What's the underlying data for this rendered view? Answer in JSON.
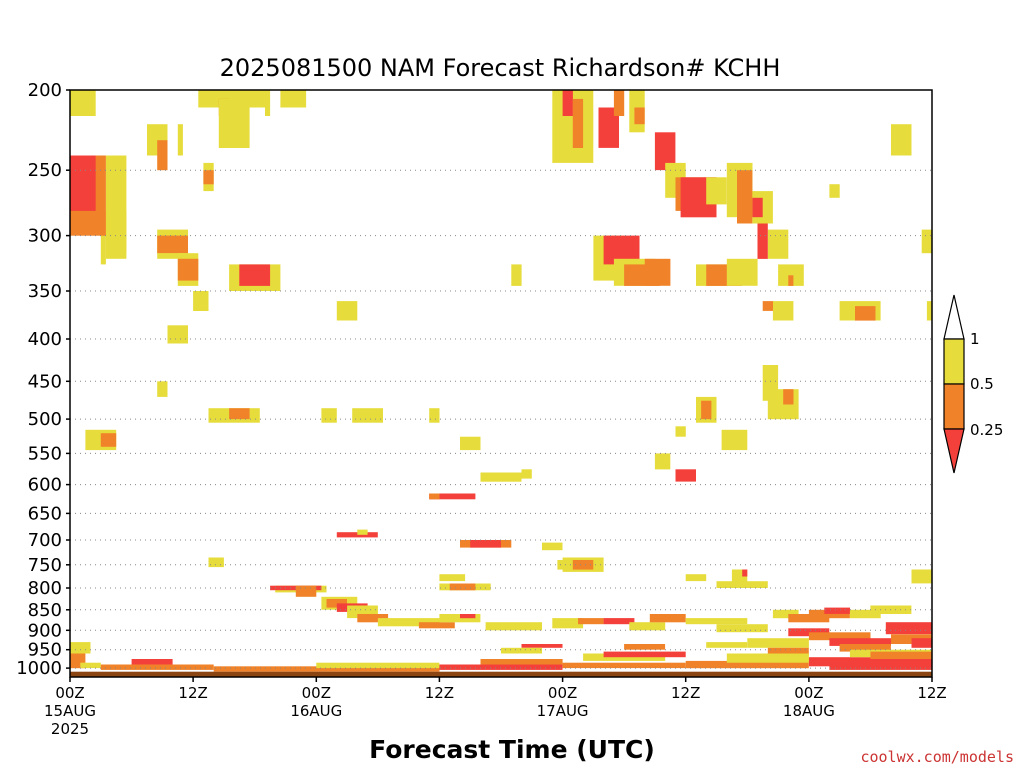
{
  "chart_data": {
    "type": "heatmap",
    "title": "2025081500 NAM Forecast Richardson# KCHH",
    "xlabel": "Forecast Time (UTC)",
    "credit": "coolwx.com/models",
    "y_scale": "log-pressure",
    "y_ticks": [
      200,
      250,
      300,
      350,
      400,
      450,
      500,
      550,
      600,
      650,
      700,
      750,
      800,
      850,
      900,
      950,
      1000
    ],
    "y_range": [
      1025,
      200
    ],
    "x_range_hours": [
      0,
      84
    ],
    "x_ticks": [
      {
        "hours": 0,
        "lines": [
          "00Z",
          "15AUG",
          "2025"
        ]
      },
      {
        "hours": 12,
        "lines": [
          "12Z"
        ]
      },
      {
        "hours": 24,
        "lines": [
          "00Z",
          "16AUG"
        ]
      },
      {
        "hours": 36,
        "lines": [
          "12Z"
        ]
      },
      {
        "hours": 48,
        "lines": [
          "00Z",
          "17AUG"
        ]
      },
      {
        "hours": 60,
        "lines": [
          "12Z"
        ]
      },
      {
        "hours": 72,
        "lines": [
          "00Z",
          "18AUG"
        ]
      },
      {
        "hours": 84,
        "lines": [
          "12Z"
        ]
      }
    ],
    "grid": "dotted horizontal at pressure ticks",
    "legend": {
      "placement": "right",
      "bins": [
        {
          "label": "1",
          "range": [
            1,
            null
          ],
          "color": "#ffffff"
        },
        {
          "label": "0.5",
          "range": [
            0.5,
            1
          ],
          "color": "#e6dd3c"
        },
        {
          "label": "0.25",
          "range": [
            0.25,
            0.5
          ],
          "color": "#f0832a"
        },
        {
          "label": "",
          "range": [
            null,
            0.25
          ],
          "color": "#f4403a"
        }
      ]
    },
    "colors": {
      "y": "#e6dd3c",
      "o": "#f0832a",
      "r": "#f4403a",
      "ground": "#8b4513"
    },
    "cells_note": "each cell: [hour_start, hour_end, p_top_hPa, p_bottom_hPa, bin]",
    "cells": [
      [
        0,
        2.5,
        200,
        215,
        "y"
      ],
      [
        3,
        3.5,
        280,
        325,
        "y"
      ],
      [
        3.5,
        5.5,
        240,
        320,
        "y"
      ],
      [
        0,
        3.5,
        240,
        300,
        "o"
      ],
      [
        0,
        2.5,
        240,
        280,
        "r"
      ],
      [
        0,
        1,
        240,
        260,
        "r"
      ],
      [
        4,
        5.5,
        280,
        315,
        "y"
      ],
      [
        7.5,
        9.5,
        220,
        240,
        "y"
      ],
      [
        8.5,
        9.5,
        230,
        250,
        "o"
      ],
      [
        10.5,
        11,
        220,
        240,
        "y"
      ],
      [
        8.5,
        11.5,
        295,
        320,
        "y"
      ],
      [
        8.5,
        11.5,
        300,
        315,
        "o"
      ],
      [
        10.5,
        12.5,
        315,
        345,
        "y"
      ],
      [
        10.5,
        12.5,
        320,
        340,
        "o"
      ],
      [
        12,
        13.5,
        350,
        370,
        "y"
      ],
      [
        13,
        14,
        245,
        265,
        "y"
      ],
      [
        13,
        14,
        250,
        260,
        "o"
      ],
      [
        12.5,
        19.5,
        200,
        210,
        "y"
      ],
      [
        14.5,
        15.5,
        205,
        215,
        "o"
      ],
      [
        14.5,
        17.5,
        205,
        235,
        "y"
      ],
      [
        19,
        19.5,
        210,
        215,
        "y"
      ],
      [
        20.5,
        23,
        200,
        210,
        "y"
      ],
      [
        15.5,
        20.5,
        325,
        350,
        "y"
      ],
      [
        16.5,
        19.5,
        325,
        345,
        "r"
      ],
      [
        9.5,
        11.5,
        385,
        405,
        "y"
      ],
      [
        8.5,
        9.5,
        450,
        470,
        "y"
      ],
      [
        26,
        28,
        360,
        380,
        "y"
      ],
      [
        1.5,
        4.5,
        515,
        545,
        "y"
      ],
      [
        3,
        4.5,
        520,
        540,
        "o"
      ],
      [
        13.5,
        18.5,
        485,
        505,
        "y"
      ],
      [
        15.5,
        17.5,
        485,
        500,
        "o"
      ],
      [
        24.5,
        26,
        485,
        505,
        "y"
      ],
      [
        27.5,
        30.5,
        485,
        505,
        "y"
      ],
      [
        35,
        36,
        485,
        505,
        "y"
      ],
      [
        38,
        40,
        525,
        545,
        "y"
      ],
      [
        13.5,
        15,
        735,
        755,
        "y"
      ],
      [
        35,
        39.5,
        615,
        625,
        "r"
      ],
      [
        35,
        36,
        615,
        625,
        "o"
      ],
      [
        26,
        30,
        685,
        695,
        "r"
      ],
      [
        28,
        29,
        680,
        690,
        "y"
      ],
      [
        38,
        43,
        700,
        715,
        "o"
      ],
      [
        39,
        42,
        700,
        715,
        "r"
      ],
      [
        46,
        48,
        705,
        720,
        "y"
      ],
      [
        36,
        38.5,
        770,
        785,
        "y"
      ],
      [
        36,
        41,
        790,
        805,
        "y"
      ],
      [
        37,
        39.5,
        790,
        805,
        "o"
      ],
      [
        48,
        52,
        735,
        765,
        "y"
      ],
      [
        47.5,
        49,
        740,
        760,
        "y"
      ],
      [
        49,
        51,
        740,
        760,
        "o"
      ],
      [
        57,
        58.5,
        550,
        575,
        "y"
      ],
      [
        59,
        60,
        510,
        525,
        "y"
      ],
      [
        61,
        63,
        470,
        505,
        "y"
      ],
      [
        61.5,
        62.5,
        475,
        500,
        "o"
      ],
      [
        63.5,
        66,
        515,
        545,
        "y"
      ],
      [
        47,
        51,
        200,
        245,
        "y"
      ],
      [
        48,
        49,
        200,
        215,
        "r"
      ],
      [
        49,
        50,
        205,
        235,
        "o"
      ],
      [
        51.5,
        53.5,
        210,
        235,
        "r"
      ],
      [
        53,
        54,
        200,
        215,
        "o"
      ],
      [
        54.5,
        56,
        200,
        225,
        "y"
      ],
      [
        55,
        56,
        210,
        220,
        "o"
      ],
      [
        57,
        59,
        225,
        250,
        "r"
      ],
      [
        58,
        60,
        245,
        270,
        "y"
      ],
      [
        59,
        63,
        255,
        280,
        "o"
      ],
      [
        59.5,
        63,
        255,
        285,
        "r"
      ],
      [
        62,
        64,
        255,
        275,
        "y"
      ],
      [
        64,
        66.5,
        245,
        285,
        "y"
      ],
      [
        65,
        66.5,
        250,
        290,
        "o"
      ],
      [
        66.5,
        68.5,
        265,
        290,
        "y"
      ],
      [
        66.5,
        67.5,
        270,
        285,
        "r"
      ],
      [
        68,
        70,
        295,
        320,
        "y"
      ],
      [
        67,
        68,
        290,
        320,
        "r"
      ],
      [
        51,
        54,
        300,
        340,
        "y"
      ],
      [
        52,
        55.5,
        300,
        325,
        "r"
      ],
      [
        53,
        57,
        320,
        345,
        "y"
      ],
      [
        54,
        57.5,
        325,
        345,
        "o"
      ],
      [
        56,
        58.5,
        320,
        345,
        "o"
      ],
      [
        61,
        64,
        325,
        345,
        "y"
      ],
      [
        62,
        65.5,
        325,
        345,
        "o"
      ],
      [
        64,
        67,
        320,
        345,
        "y"
      ],
      [
        69,
        71.5,
        325,
        345,
        "y"
      ],
      [
        70,
        70.5,
        335,
        345,
        "o"
      ],
      [
        75,
        79,
        360,
        380,
        "y"
      ],
      [
        76.5,
        78.5,
        365,
        380,
        "o"
      ],
      [
        68.5,
        70.5,
        360,
        380,
        "y"
      ],
      [
        74,
        75,
        260,
        270,
        "y"
      ],
      [
        80,
        82,
        220,
        240,
        "y"
      ],
      [
        83,
        84,
        295,
        315,
        "y"
      ],
      [
        83.5,
        84,
        360,
        380,
        "y"
      ],
      [
        67.5,
        69,
        430,
        475,
        "y"
      ],
      [
        68,
        71,
        460,
        500,
        "y"
      ],
      [
        69.5,
        70.5,
        460,
        480,
        "o"
      ],
      [
        67.5,
        68.5,
        360,
        370,
        "o"
      ],
      [
        43,
        44,
        325,
        345,
        "y"
      ],
      [
        40,
        44,
        580,
        595,
        "y"
      ],
      [
        44,
        45,
        575,
        590,
        "y"
      ],
      [
        59,
        61,
        575,
        595,
        "r"
      ],
      [
        60,
        62,
        770,
        785,
        "y"
      ],
      [
        64.5,
        66,
        760,
        790,
        "y"
      ],
      [
        65.5,
        66,
        760,
        775,
        "r"
      ],
      [
        63,
        68,
        785,
        800,
        "y"
      ],
      [
        82,
        84,
        760,
        790,
        "y"
      ],
      [
        20,
        25,
        795,
        810,
        "y"
      ],
      [
        19.5,
        24.5,
        795,
        805,
        "r"
      ],
      [
        22,
        24,
        795,
        820,
        "o"
      ],
      [
        24.5,
        28,
        820,
        850,
        "y"
      ],
      [
        25,
        27,
        825,
        845,
        "o"
      ],
      [
        26,
        29,
        835,
        855,
        "r"
      ],
      [
        27,
        30,
        840,
        870,
        "y"
      ],
      [
        28,
        31,
        860,
        880,
        "o"
      ],
      [
        30,
        36,
        870,
        890,
        "y"
      ],
      [
        34,
        37.5,
        880,
        895,
        "o"
      ],
      [
        36,
        40,
        860,
        880,
        "y"
      ],
      [
        38,
        39.5,
        860,
        870,
        "r"
      ],
      [
        40.5,
        46,
        880,
        900,
        "y"
      ],
      [
        47,
        50,
        870,
        895,
        "y"
      ],
      [
        49.5,
        52,
        870,
        885,
        "o"
      ],
      [
        52,
        55,
        870,
        885,
        "r"
      ],
      [
        54.5,
        58,
        880,
        900,
        "y"
      ],
      [
        56.5,
        60,
        860,
        880,
        "o"
      ],
      [
        60,
        66,
        870,
        885,
        "y"
      ],
      [
        63,
        68,
        885,
        905,
        "y"
      ],
      [
        68.5,
        71,
        850,
        870,
        "y"
      ],
      [
        70,
        74,
        860,
        880,
        "o"
      ],
      [
        72,
        76,
        850,
        870,
        "o"
      ],
      [
        73.5,
        76,
        845,
        860,
        "r"
      ],
      [
        76,
        79,
        850,
        870,
        "y"
      ],
      [
        78,
        82,
        840,
        860,
        "y"
      ],
      [
        79.5,
        84,
        880,
        910,
        "r"
      ],
      [
        80,
        84,
        910,
        935,
        "o"
      ],
      [
        82,
        84,
        920,
        945,
        "r"
      ],
      [
        70,
        74,
        895,
        915,
        "r"
      ],
      [
        72,
        78,
        905,
        925,
        "o"
      ],
      [
        74,
        80,
        920,
        940,
        "r"
      ],
      [
        75,
        80,
        935,
        955,
        "o"
      ],
      [
        66,
        72,
        920,
        945,
        "y"
      ],
      [
        68,
        72,
        945,
        965,
        "o"
      ],
      [
        0,
        2,
        930,
        960,
        "y"
      ],
      [
        0,
        1.5,
        960,
        1000,
        "o"
      ],
      [
        1,
        3,
        985,
        1000,
        "y"
      ],
      [
        3,
        14,
        990,
        1005,
        "o"
      ],
      [
        6,
        10,
        975,
        990,
        "r"
      ],
      [
        14,
        36,
        995,
        1010,
        "o"
      ],
      [
        24,
        36,
        985,
        1000,
        "y"
      ],
      [
        36,
        48,
        990,
        1005,
        "r"
      ],
      [
        40,
        48,
        975,
        990,
        "o"
      ],
      [
        48,
        60,
        985,
        1000,
        "o"
      ],
      [
        50,
        58,
        960,
        980,
        "y"
      ],
      [
        52,
        60,
        955,
        970,
        "r"
      ],
      [
        60,
        72,
        980,
        1000,
        "o"
      ],
      [
        64,
        72,
        960,
        985,
        "y"
      ],
      [
        72,
        84,
        970,
        995,
        "r"
      ],
      [
        74,
        84,
        990,
        1005,
        "r"
      ],
      [
        76,
        84,
        950,
        970,
        "y"
      ],
      [
        78,
        84,
        955,
        975,
        "o"
      ],
      [
        44,
        48,
        935,
        945,
        "r"
      ],
      [
        42,
        46,
        945,
        960,
        "y"
      ],
      [
        54,
        58,
        935,
        950,
        "o"
      ],
      [
        62,
        66,
        930,
        945,
        "y"
      ]
    ]
  }
}
